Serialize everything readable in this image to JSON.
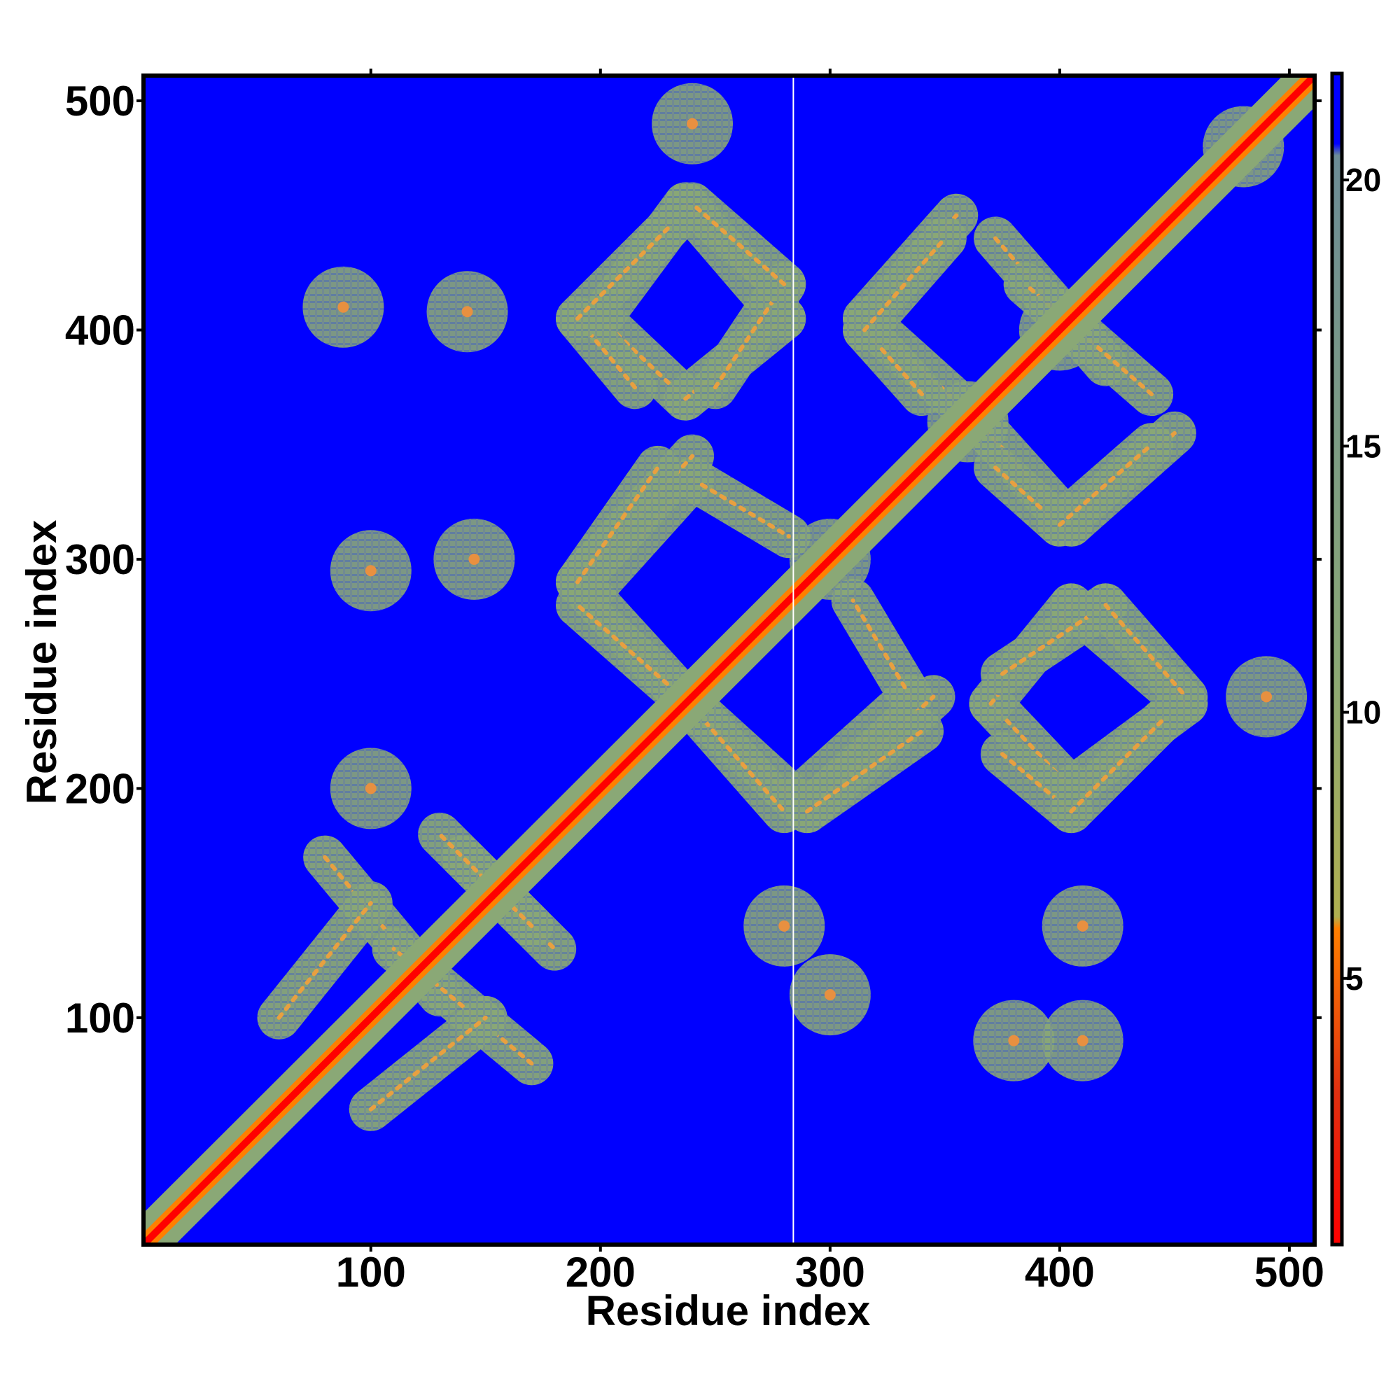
{
  "chart_data": {
    "type": "heatmap",
    "title": "",
    "xlabel": "Residue index",
    "ylabel": "Residue index",
    "xlim": [
      1,
      511
    ],
    "ylim": [
      1,
      511
    ],
    "xticks": [
      100,
      200,
      300,
      400,
      500
    ],
    "yticks": [
      100,
      200,
      300,
      400,
      500
    ],
    "colorbar": {
      "ticks": [
        5,
        10,
        15,
        20
      ],
      "range": [
        0,
        22
      ],
      "colors": [
        "#ff0000",
        "#ff7f00",
        "#8aa876",
        "#6c8c96",
        "#0000ff"
      ]
    },
    "background_value": 22,
    "diagonal": {
      "from": 1,
      "to": 511
    },
    "gap_line_x": 284,
    "contact_bands": [
      {
        "from": [
          200,
          405
        ],
        "to": [
          237,
          455
        ]
      },
      {
        "from": [
          237,
          455
        ],
        "to": [
          280,
          405
        ]
      },
      {
        "from": [
          200,
          405
        ],
        "to": [
          237,
          370
        ]
      },
      {
        "from": [
          237,
          370
        ],
        "to": [
          280,
          405
        ]
      },
      {
        "from": [
          195,
          285
        ],
        "to": [
          240,
          335
        ]
      },
      {
        "from": [
          240,
          335
        ],
        "to": [
          282,
          310
        ]
      },
      {
        "from": [
          195,
          285
        ],
        "to": [
          236,
          240
        ]
      },
      {
        "from": [
          236,
          240
        ],
        "to": [
          280,
          190
        ]
      },
      {
        "from": [
          290,
          190
        ],
        "to": [
          345,
          240
        ]
      },
      {
        "from": [
          290,
          190
        ],
        "to": [
          340,
          225
        ]
      },
      {
        "from": [
          315,
          405
        ],
        "to": [
          355,
          450
        ]
      },
      {
        "from": [
          315,
          405
        ],
        "to": [
          365,
          360
        ]
      },
      {
        "from": [
          372,
          440
        ],
        "to": [
          420,
          385
        ]
      },
      {
        "from": [
          372,
          340
        ],
        "to": [
          400,
          315
        ]
      },
      {
        "from": [
          400,
          315
        ],
        "to": [
          440,
          350
        ]
      },
      {
        "from": [
          375,
          250
        ],
        "to": [
          420,
          280
        ]
      },
      {
        "from": [
          420,
          280
        ],
        "to": [
          455,
          240
        ]
      },
      {
        "from": [
          375,
          215
        ],
        "to": [
          405,
          190
        ]
      },
      {
        "from": [
          405,
          190
        ],
        "to": [
          445,
          230
        ]
      },
      {
        "from": [
          50,
          50
        ],
        "to": [
          75,
          75
        ]
      },
      {
        "from": [
          80,
          170
        ],
        "to": [
          130,
          110
        ]
      },
      {
        "from": [
          100,
          60
        ],
        "to": [
          150,
          100
        ]
      },
      {
        "from": [
          140,
          170
        ],
        "to": [
          180,
          130
        ]
      }
    ],
    "contact_clusters": [
      {
        "x": 88,
        "y": 410
      },
      {
        "x": 142,
        "y": 408
      },
      {
        "x": 100,
        "y": 295
      },
      {
        "x": 145,
        "y": 300
      },
      {
        "x": 100,
        "y": 200
      },
      {
        "x": 300,
        "y": 110
      },
      {
        "x": 280,
        "y": 140
      },
      {
        "x": 410,
        "y": 140
      },
      {
        "x": 410,
        "y": 90
      },
      {
        "x": 380,
        "y": 90
      },
      {
        "x": 240,
        "y": 490
      },
      {
        "x": 490,
        "y": 240
      },
      {
        "x": 480,
        "y": 480
      },
      {
        "x": 300,
        "y": 300
      },
      {
        "x": 360,
        "y": 360
      },
      {
        "x": 400,
        "y": 400
      }
    ]
  }
}
